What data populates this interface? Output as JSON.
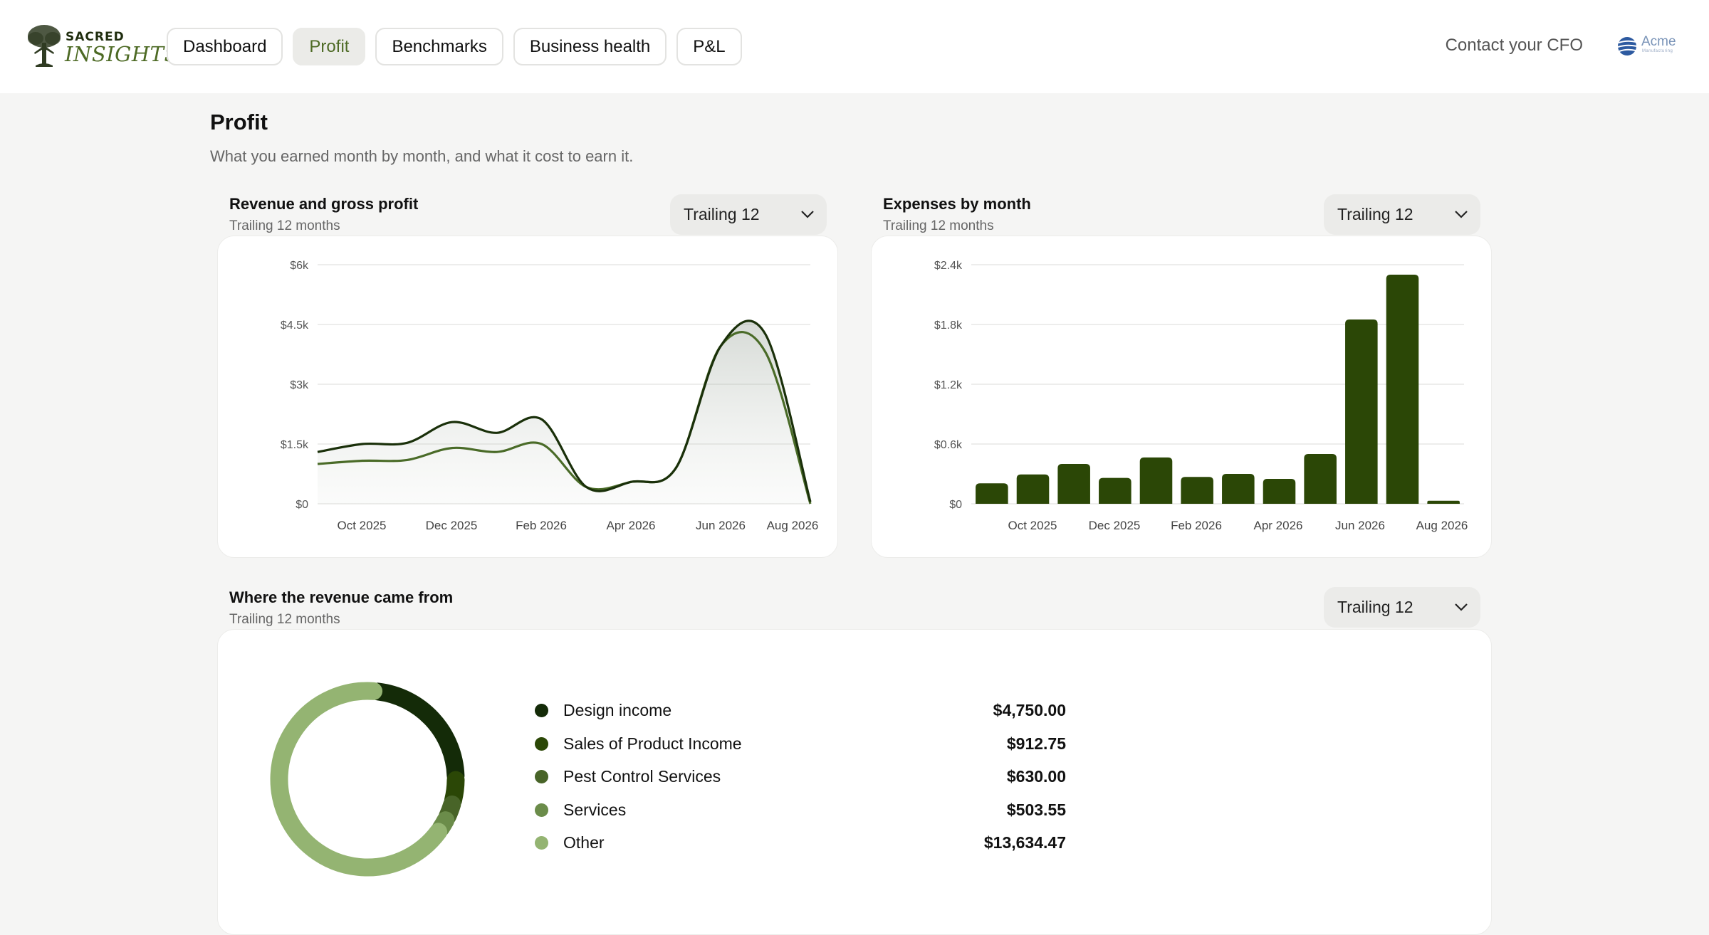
{
  "header": {
    "logo": {
      "line1": "SACRED",
      "line2": "INSIGHTS"
    },
    "nav": [
      {
        "label": "Dashboard"
      },
      {
        "label": "Profit",
        "active": true
      },
      {
        "label": "Benchmarks"
      },
      {
        "label": "Business health"
      },
      {
        "label": "P&L"
      }
    ],
    "contact_label": "Contact your CFO",
    "company_logo": {
      "name": "Acme",
      "tagline": "Manufacturing"
    }
  },
  "page": {
    "title": "Profit",
    "subtitle": "What you earned month by month, and what it cost to earn it."
  },
  "icons": {
    "dropdown": "chevron-down-icon"
  },
  "colors": {
    "brand_dark": "#1a300a",
    "brand_mid": "#4a6b28",
    "bar": "#2b4706",
    "slices": [
      "#142b08",
      "#2b4706",
      "#486428",
      "#6b8c4a",
      "#94b472"
    ]
  },
  "revenue_panel": {
    "title": "Revenue and gross profit",
    "subtitle": "Trailing 12 months",
    "period": "Trailing 12"
  },
  "expenses_panel": {
    "title": "Expenses by month",
    "subtitle": "Trailing 12 months",
    "period": "Trailing 12"
  },
  "sources_panel": {
    "title": "Where the revenue came from",
    "subtitle": "Trailing 12 months",
    "period": "Trailing 12",
    "items": [
      {
        "label": "Design income",
        "value": "$4,750.00",
        "color": "#142b08"
      },
      {
        "label": "Sales of Product Income",
        "value": "$912.75",
        "color": "#2b4706"
      },
      {
        "label": "Pest Control Services",
        "value": "$630.00",
        "color": "#486428"
      },
      {
        "label": "Services",
        "value": "$503.55",
        "color": "#6b8c4a"
      },
      {
        "label": "Other",
        "value": "$13,634.47",
        "color": "#94b472"
      }
    ]
  },
  "chart_data": [
    {
      "type": "line",
      "x": [
        "Sep 2025",
        "Oct 2025",
        "Nov 2025",
        "Dec 2025",
        "Jan 2026",
        "Feb 2026",
        "Mar 2026",
        "Apr 2026",
        "May 2026",
        "Jun 2026",
        "Jul 2026",
        "Aug 2026"
      ],
      "x_tick_labels": [
        "Oct 2025",
        "Dec 2025",
        "Feb 2026",
        "Apr 2026",
        "Jun 2026",
        "Aug 2026"
      ],
      "y_tick_labels": [
        "$0",
        "$1.5k",
        "$3k",
        "$4.5k",
        "$6k"
      ],
      "ylim": [
        0,
        6000
      ],
      "grid": true,
      "series": [
        {
          "values": [
            1300,
            1500,
            1530,
            2050,
            1780,
            2120,
            420,
            550,
            900,
            3960,
            4250,
            50
          ]
        },
        {
          "values": [
            1000,
            1080,
            1100,
            1400,
            1300,
            1500,
            420,
            550,
            900,
            3960,
            3800,
            0
          ]
        }
      ]
    },
    {
      "type": "bar",
      "categories": [
        "Sep 2025",
        "Oct 2025",
        "Nov 2025",
        "Dec 2025",
        "Jan 2026",
        "Feb 2026",
        "Mar 2026",
        "Apr 2026",
        "May 2026",
        "Jun 2026",
        "Jul 2026",
        "Aug 2026"
      ],
      "x_tick_labels": [
        "Oct 2025",
        "Dec 2025",
        "Feb 2026",
        "Apr 2026",
        "Jun 2026",
        "Aug 2026"
      ],
      "y_tick_labels": [
        "$0",
        "$0.6k",
        "$1.2k",
        "$1.8k",
        "$2.4k"
      ],
      "values": [
        205,
        295,
        400,
        260,
        465,
        270,
        300,
        250,
        500,
        1850,
        2300,
        30
      ],
      "ylim": [
        0,
        2400
      ],
      "grid": true
    },
    {
      "type": "pie",
      "categories": [
        "Design income",
        "Sales of Product Income",
        "Pest Control Services",
        "Services",
        "Other"
      ],
      "values": [
        4750.0,
        912.75,
        630.0,
        503.55,
        13634.47
      ]
    }
  ]
}
